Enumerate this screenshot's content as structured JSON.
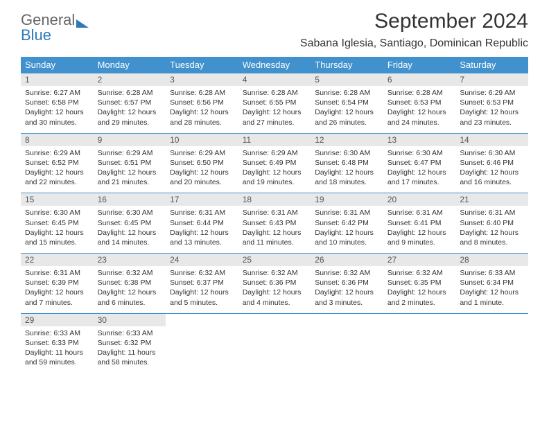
{
  "brand": {
    "line1": "General",
    "line2": "Blue"
  },
  "title": "September 2024",
  "location": "Sabana Iglesia, Santiago, Dominican Republic",
  "colors": {
    "header_bg": "#4091cd",
    "header_text": "#ffffff",
    "daynum_bg": "#e8e8e8",
    "border": "#4091cd",
    "body_text": "#333333",
    "logo_blue": "#2f79b9"
  },
  "weekdays": [
    "Sunday",
    "Monday",
    "Tuesday",
    "Wednesday",
    "Thursday",
    "Friday",
    "Saturday"
  ],
  "weeks": [
    [
      {
        "n": "1",
        "sr": "Sunrise: 6:27 AM",
        "ss": "Sunset: 6:58 PM",
        "dl": "Daylight: 12 hours and 30 minutes."
      },
      {
        "n": "2",
        "sr": "Sunrise: 6:28 AM",
        "ss": "Sunset: 6:57 PM",
        "dl": "Daylight: 12 hours and 29 minutes."
      },
      {
        "n": "3",
        "sr": "Sunrise: 6:28 AM",
        "ss": "Sunset: 6:56 PM",
        "dl": "Daylight: 12 hours and 28 minutes."
      },
      {
        "n": "4",
        "sr": "Sunrise: 6:28 AM",
        "ss": "Sunset: 6:55 PM",
        "dl": "Daylight: 12 hours and 27 minutes."
      },
      {
        "n": "5",
        "sr": "Sunrise: 6:28 AM",
        "ss": "Sunset: 6:54 PM",
        "dl": "Daylight: 12 hours and 26 minutes."
      },
      {
        "n": "6",
        "sr": "Sunrise: 6:28 AM",
        "ss": "Sunset: 6:53 PM",
        "dl": "Daylight: 12 hours and 24 minutes."
      },
      {
        "n": "7",
        "sr": "Sunrise: 6:29 AM",
        "ss": "Sunset: 6:53 PM",
        "dl": "Daylight: 12 hours and 23 minutes."
      }
    ],
    [
      {
        "n": "8",
        "sr": "Sunrise: 6:29 AM",
        "ss": "Sunset: 6:52 PM",
        "dl": "Daylight: 12 hours and 22 minutes."
      },
      {
        "n": "9",
        "sr": "Sunrise: 6:29 AM",
        "ss": "Sunset: 6:51 PM",
        "dl": "Daylight: 12 hours and 21 minutes."
      },
      {
        "n": "10",
        "sr": "Sunrise: 6:29 AM",
        "ss": "Sunset: 6:50 PM",
        "dl": "Daylight: 12 hours and 20 minutes."
      },
      {
        "n": "11",
        "sr": "Sunrise: 6:29 AM",
        "ss": "Sunset: 6:49 PM",
        "dl": "Daylight: 12 hours and 19 minutes."
      },
      {
        "n": "12",
        "sr": "Sunrise: 6:30 AM",
        "ss": "Sunset: 6:48 PM",
        "dl": "Daylight: 12 hours and 18 minutes."
      },
      {
        "n": "13",
        "sr": "Sunrise: 6:30 AM",
        "ss": "Sunset: 6:47 PM",
        "dl": "Daylight: 12 hours and 17 minutes."
      },
      {
        "n": "14",
        "sr": "Sunrise: 6:30 AM",
        "ss": "Sunset: 6:46 PM",
        "dl": "Daylight: 12 hours and 16 minutes."
      }
    ],
    [
      {
        "n": "15",
        "sr": "Sunrise: 6:30 AM",
        "ss": "Sunset: 6:45 PM",
        "dl": "Daylight: 12 hours and 15 minutes."
      },
      {
        "n": "16",
        "sr": "Sunrise: 6:30 AM",
        "ss": "Sunset: 6:45 PM",
        "dl": "Daylight: 12 hours and 14 minutes."
      },
      {
        "n": "17",
        "sr": "Sunrise: 6:31 AM",
        "ss": "Sunset: 6:44 PM",
        "dl": "Daylight: 12 hours and 13 minutes."
      },
      {
        "n": "18",
        "sr": "Sunrise: 6:31 AM",
        "ss": "Sunset: 6:43 PM",
        "dl": "Daylight: 12 hours and 11 minutes."
      },
      {
        "n": "19",
        "sr": "Sunrise: 6:31 AM",
        "ss": "Sunset: 6:42 PM",
        "dl": "Daylight: 12 hours and 10 minutes."
      },
      {
        "n": "20",
        "sr": "Sunrise: 6:31 AM",
        "ss": "Sunset: 6:41 PM",
        "dl": "Daylight: 12 hours and 9 minutes."
      },
      {
        "n": "21",
        "sr": "Sunrise: 6:31 AM",
        "ss": "Sunset: 6:40 PM",
        "dl": "Daylight: 12 hours and 8 minutes."
      }
    ],
    [
      {
        "n": "22",
        "sr": "Sunrise: 6:31 AM",
        "ss": "Sunset: 6:39 PM",
        "dl": "Daylight: 12 hours and 7 minutes."
      },
      {
        "n": "23",
        "sr": "Sunrise: 6:32 AM",
        "ss": "Sunset: 6:38 PM",
        "dl": "Daylight: 12 hours and 6 minutes."
      },
      {
        "n": "24",
        "sr": "Sunrise: 6:32 AM",
        "ss": "Sunset: 6:37 PM",
        "dl": "Daylight: 12 hours and 5 minutes."
      },
      {
        "n": "25",
        "sr": "Sunrise: 6:32 AM",
        "ss": "Sunset: 6:36 PM",
        "dl": "Daylight: 12 hours and 4 minutes."
      },
      {
        "n": "26",
        "sr": "Sunrise: 6:32 AM",
        "ss": "Sunset: 6:36 PM",
        "dl": "Daylight: 12 hours and 3 minutes."
      },
      {
        "n": "27",
        "sr": "Sunrise: 6:32 AM",
        "ss": "Sunset: 6:35 PM",
        "dl": "Daylight: 12 hours and 2 minutes."
      },
      {
        "n": "28",
        "sr": "Sunrise: 6:33 AM",
        "ss": "Sunset: 6:34 PM",
        "dl": "Daylight: 12 hours and 1 minute."
      }
    ],
    [
      {
        "n": "29",
        "sr": "Sunrise: 6:33 AM",
        "ss": "Sunset: 6:33 PM",
        "dl": "Daylight: 11 hours and 59 minutes."
      },
      {
        "n": "30",
        "sr": "Sunrise: 6:33 AM",
        "ss": "Sunset: 6:32 PM",
        "dl": "Daylight: 11 hours and 58 minutes."
      },
      {
        "empty": true
      },
      {
        "empty": true
      },
      {
        "empty": true
      },
      {
        "empty": true
      },
      {
        "empty": true
      }
    ]
  ]
}
